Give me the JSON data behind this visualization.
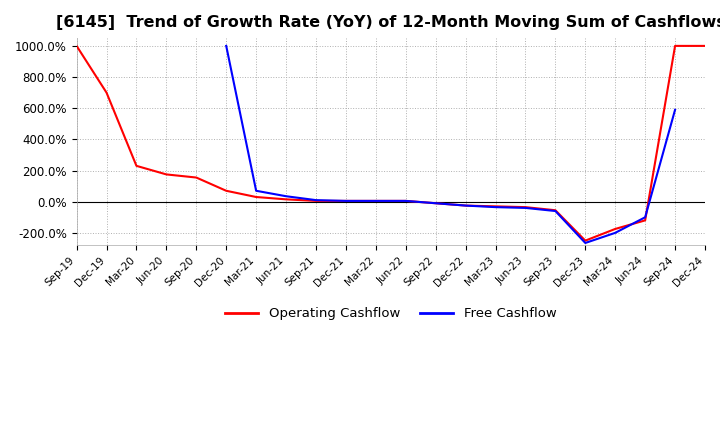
{
  "title": "[6145]  Trend of Growth Rate (YoY) of 12-Month Moving Sum of Cashflows",
  "title_fontsize": 11.5,
  "ylim": [
    -280,
    1050
  ],
  "yticks": [
    -200,
    0,
    200,
    400,
    600,
    800,
    1000
  ],
  "ytick_labels": [
    "-200.0%",
    "0.0%",
    "200.0%",
    "400.0%",
    "600.0%",
    "800.0%",
    "1000.0%"
  ],
  "legend_labels": [
    "Operating Cashflow",
    "Free Cashflow"
  ],
  "legend_colors": [
    "#ff0000",
    "#0000ff"
  ],
  "background_color": "#ffffff",
  "grid_color": "#b0b0b0",
  "x_labels": [
    "Sep-19",
    "Dec-19",
    "Mar-20",
    "Jun-20",
    "Sep-20",
    "Dec-20",
    "Mar-21",
    "Jun-21",
    "Sep-21",
    "Dec-21",
    "Mar-22",
    "Jun-22",
    "Sep-22",
    "Dec-22",
    "Mar-23",
    "Jun-23",
    "Sep-23",
    "Dec-23",
    "Mar-24",
    "Jun-24",
    "Sep-24",
    "Dec-24"
  ],
  "operating_cashflow": [
    1000,
    700,
    230,
    175,
    155,
    70,
    30,
    15,
    5,
    5,
    5,
    5,
    -10,
    -25,
    -30,
    -35,
    -55,
    -250,
    -175,
    -120,
    1000,
    1000
  ],
  "free_cashflow": [
    null,
    null,
    null,
    null,
    null,
    1000,
    70,
    35,
    10,
    5,
    5,
    5,
    -10,
    -25,
    -35,
    -40,
    -60,
    -265,
    -200,
    -100,
    590,
    null
  ]
}
